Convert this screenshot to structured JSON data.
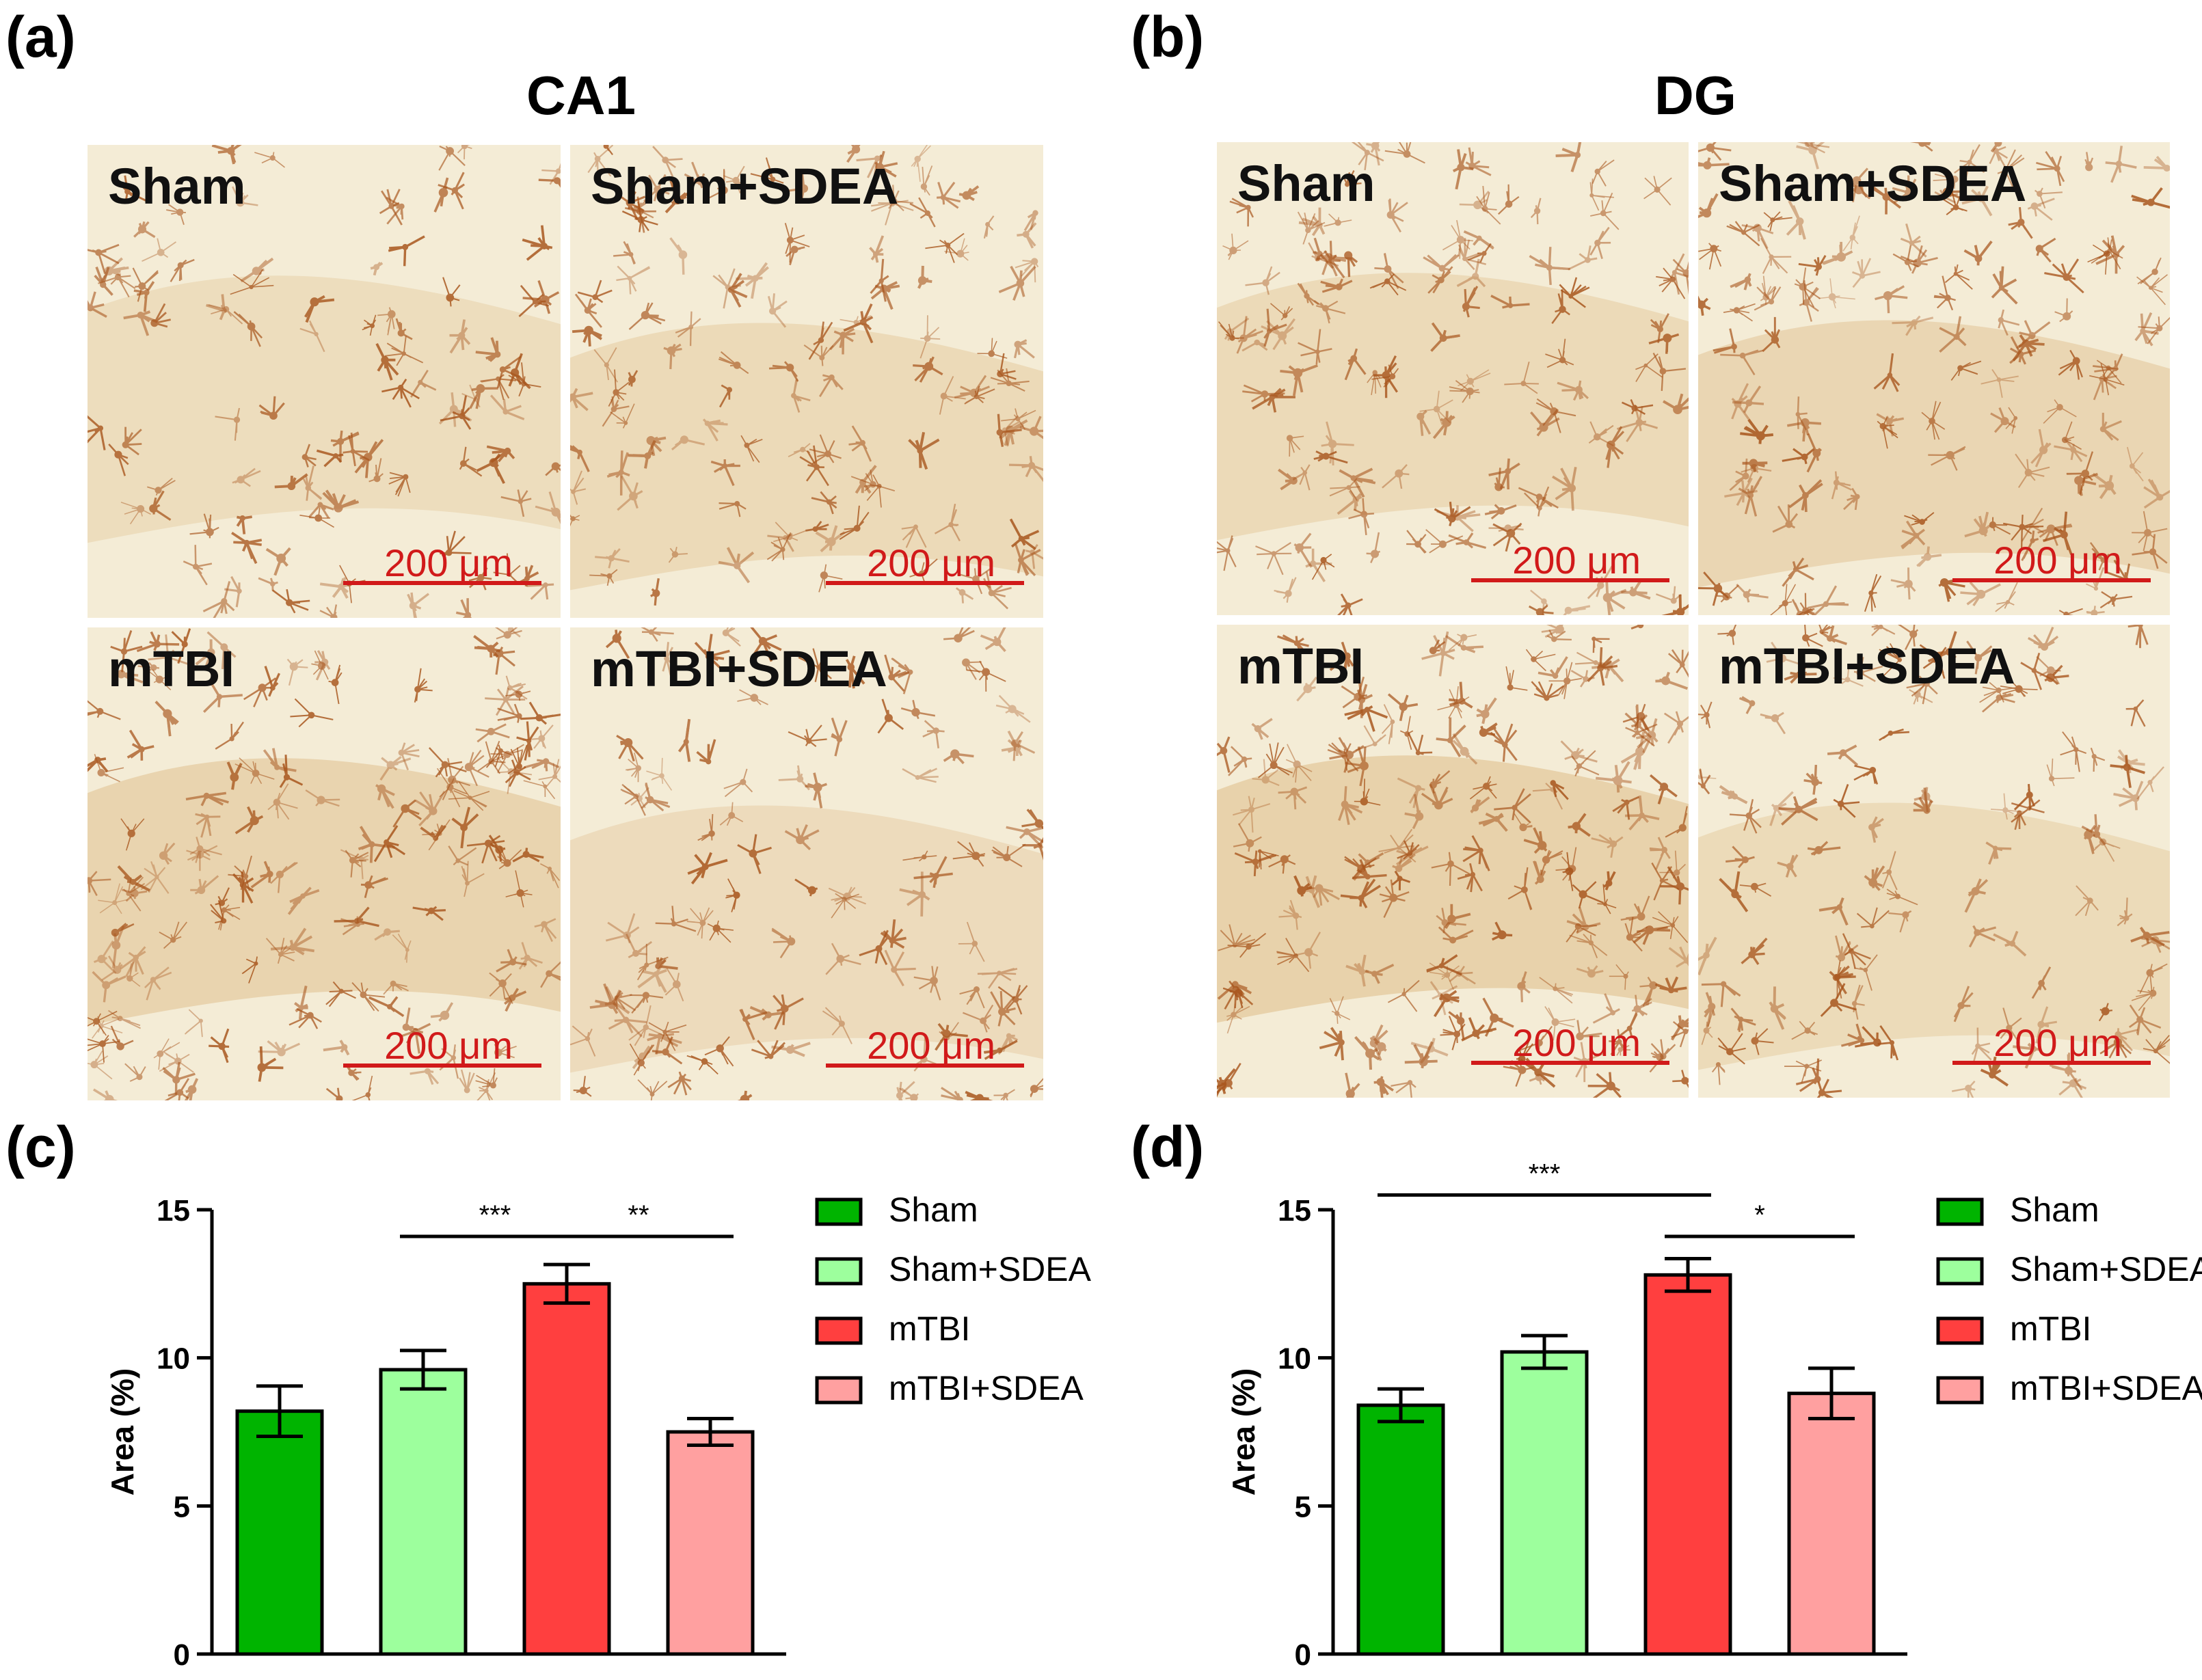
{
  "panels": {
    "a": {
      "letter": "(a)",
      "region": "CA1",
      "images": [
        {
          "label": "Sham",
          "scale": "200 μm",
          "density": 0.3
        },
        {
          "label": "Sham+SDEA",
          "scale": "200 μm",
          "density": 0.45
        },
        {
          "label": "mTBI",
          "scale": "200 μm",
          "density": 0.7
        },
        {
          "label": "mTBI+SDEA",
          "scale": "200 μm",
          "density": 0.35
        }
      ]
    },
    "b": {
      "letter": "(b)",
      "region": "DG",
      "images": [
        {
          "label": "Sham",
          "scale": "200 μm",
          "density": 0.45
        },
        {
          "label": "Sham+SDEA",
          "scale": "200 μm",
          "density": 0.6
        },
        {
          "label": "mTBI",
          "scale": "200 μm",
          "density": 0.85
        },
        {
          "label": "mTBI+SDEA",
          "scale": "200 μm",
          "density": 0.4
        }
      ]
    },
    "c": {
      "letter": "(c)"
    },
    "d": {
      "letter": "(d)"
    }
  },
  "colors": {
    "Sham": "#00b400",
    "Sham+SDEA": "#9dff9d",
    "mTBI": "#ff3f3f",
    "mTBI+SDEA": "#ffa0a0",
    "tissue": "#f4ecd6",
    "stain": "#a8551c",
    "scale": "#d11a1a"
  },
  "chart_data": [
    {
      "type": "bar",
      "panel": "c",
      "categories": [
        "Sham",
        "Sham+SDEA",
        "mTBI",
        "mTBI+SDEA"
      ],
      "values": [
        8.2,
        9.6,
        12.5,
        7.5
      ],
      "errors": [
        0.85,
        0.65,
        0.65,
        0.45
      ],
      "ylabel": "Area (%)",
      "ylim": [
        0,
        15
      ],
      "yticks": [
        "0",
        "5",
        "10",
        "15"
      ],
      "legend": [
        "Sham",
        "Sham+SDEA",
        "mTBI",
        "mTBI+SDEA"
      ],
      "significance": [
        {
          "from": 1,
          "to": 2,
          "label": "***",
          "y": 14.1
        },
        {
          "from": 2,
          "to": 3,
          "label": "**",
          "y": 14.1
        }
      ]
    },
    {
      "type": "bar",
      "panel": "d",
      "categories": [
        "Sham",
        "Sham+SDEA",
        "mTBI",
        "mTBI+SDEA"
      ],
      "values": [
        8.4,
        10.2,
        12.8,
        8.8
      ],
      "errors": [
        0.55,
        0.55,
        0.55,
        0.85
      ],
      "ylabel": "Area (%)",
      "ylim": [
        0,
        15
      ],
      "yticks": [
        "0",
        "5",
        "10",
        "15"
      ],
      "legend": [
        "Sham",
        "Sham+SDEA",
        "mTBI",
        "mTBI+SDEA"
      ],
      "significance": [
        {
          "from": 0,
          "to": 2,
          "label": "***",
          "y": 15.5
        },
        {
          "from": 2,
          "to": 3,
          "label": "*",
          "y": 14.1
        }
      ]
    }
  ]
}
